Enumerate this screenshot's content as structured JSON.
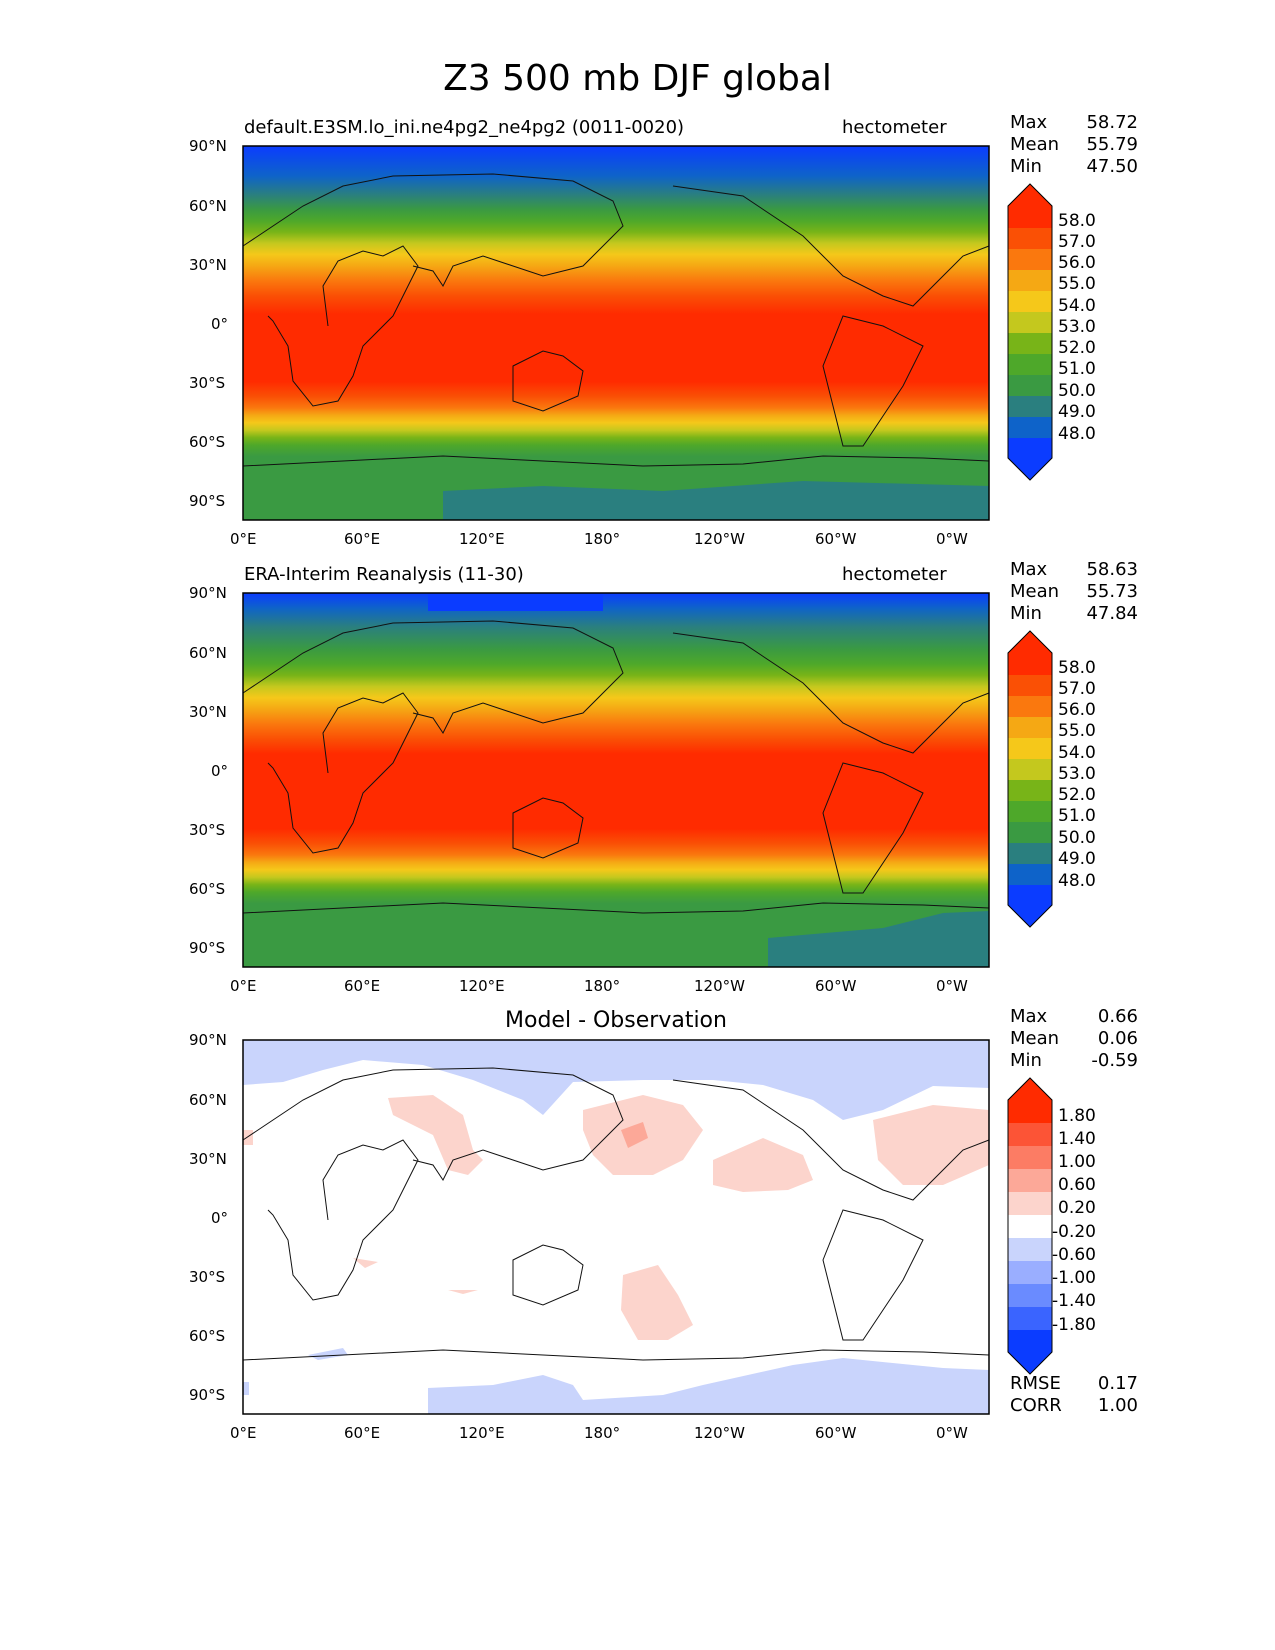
{
  "figure": {
    "title": "Z3 500 mb DJF global"
  },
  "panels": [
    {
      "subtitle_left": "default.E3SM.lo_ini.ne4pg2_ne4pg2 (0011-0020)",
      "subtitle_right": "hectometer",
      "title": "",
      "stats": {
        "max_label": "Max",
        "max": "58.72",
        "mean_label": "Mean",
        "mean": "55.79",
        "min_label": "Min",
        "min": "47.50"
      },
      "colorbar_labels": [
        "58.0",
        "57.0",
        "56.0",
        "55.0",
        "54.0",
        "53.0",
        "52.0",
        "51.0",
        "50.0",
        "49.0",
        "48.0"
      ]
    },
    {
      "subtitle_left": "ERA-Interim Reanalysis (11-30)",
      "subtitle_right": "hectometer",
      "title": "",
      "stats": {
        "max_label": "Max",
        "max": "58.63",
        "mean_label": "Mean",
        "mean": "55.73",
        "min_label": "Min",
        "min": "47.84"
      },
      "colorbar_labels": [
        "58.0",
        "57.0",
        "56.0",
        "55.0",
        "54.0",
        "53.0",
        "52.0",
        "51.0",
        "50.0",
        "49.0",
        "48.0"
      ]
    },
    {
      "subtitle_left": "",
      "subtitle_right": "",
      "title": "Model - Observation",
      "stats": {
        "max_label": "Max",
        "max": "0.66",
        "mean_label": "Mean",
        "mean": "0.06",
        "min_label": "Min",
        "min": "-0.59"
      },
      "colorbar_labels": [
        "1.80",
        "1.40",
        "1.00",
        "0.60",
        "0.20",
        "-0.20",
        "-0.60",
        "-1.00",
        "-1.40",
        "-1.80"
      ],
      "extra": {
        "rmse_label": "RMSE",
        "rmse": "0.17",
        "corr_label": "CORR",
        "corr": "1.00"
      }
    }
  ],
  "axes": {
    "lat_ticks": [
      "90°N",
      "60°N",
      "30°N",
      "0°",
      "30°S",
      "60°S",
      "90°S"
    ],
    "lon_ticks": [
      "0°E",
      "60°E",
      "120°E",
      "180°",
      "120°W",
      "60°W",
      "0°W"
    ]
  },
  "chart_data": [
    {
      "type": "heatmap",
      "variable": "Z3 500 mb",
      "units": "hectometer",
      "levels": [
        48,
        49,
        50,
        51,
        52,
        53,
        54,
        55,
        56,
        57,
        58
      ],
      "colors": [
        "#0b3cff",
        "#0e63c9",
        "#2a7f7f",
        "#3a9a42",
        "#4ea82a",
        "#78b418",
        "#c4c81e",
        "#f5c81a",
        "#f5a814",
        "#fa780e",
        "#fa5005",
        "#ff2b00"
      ],
      "zonal_mean_profile": {
        "lat": [
          90,
          75,
          60,
          45,
          30,
          15,
          0,
          -15,
          -30,
          -45,
          -60,
          -75,
          -90
        ],
        "value": [
          48.5,
          50.5,
          52.5,
          54.8,
          57.0,
          58.2,
          58.5,
          58.4,
          57.5,
          54.0,
          51.0,
          50.0,
          50.0
        ]
      },
      "stats": {
        "max": 58.72,
        "mean": 55.79,
        "min": 47.5
      }
    },
    {
      "type": "heatmap",
      "variable": "Z3 500 mb",
      "units": "hectometer",
      "levels": [
        48,
        49,
        50,
        51,
        52,
        53,
        54,
        55,
        56,
        57,
        58
      ],
      "colors": [
        "#0b3cff",
        "#0e63c9",
        "#2a7f7f",
        "#3a9a42",
        "#4ea82a",
        "#78b418",
        "#c4c81e",
        "#f5c81a",
        "#f5a814",
        "#fa780e",
        "#fa5005",
        "#ff2b00"
      ],
      "zonal_mean_profile": {
        "lat": [
          90,
          75,
          60,
          45,
          30,
          15,
          0,
          -15,
          -30,
          -45,
          -60,
          -75,
          -90
        ],
        "value": [
          48.6,
          50.4,
          52.4,
          54.7,
          57.0,
          58.2,
          58.5,
          58.4,
          57.4,
          53.9,
          51.0,
          50.2,
          50.3
        ]
      },
      "stats": {
        "max": 58.63,
        "mean": 55.73,
        "min": 47.84
      }
    },
    {
      "type": "heatmap",
      "variable": "Model - Observation",
      "levels": [
        -1.8,
        -1.4,
        -1.0,
        -0.6,
        -0.2,
        0.2,
        0.6,
        1.0,
        1.4,
        1.8
      ],
      "colors": [
        "#0b3cff",
        "#3a64ff",
        "#6a8bff",
        "#9aaeff",
        "#c9d4fc",
        "#ffffff",
        "#fcd4cc",
        "#fca898",
        "#fc7c64",
        "#fc5436",
        "#ff2b00"
      ],
      "positive_anomalies": [
        {
          "lon": 55,
          "lat": 35,
          "value": 0.4
        },
        {
          "lon": 200,
          "lat": 35,
          "value": 0.5
        },
        {
          "lon": 255,
          "lat": 25,
          "value": 0.3
        },
        {
          "lon": 335,
          "lat": 25,
          "value": 0.3
        },
        {
          "lon": 215,
          "lat": -45,
          "value": 0.3
        }
      ],
      "negative_anomalies": [
        {
          "lon": 330,
          "lat": 80,
          "value": -0.3
        },
        {
          "lon": 150,
          "lat": -80,
          "value": -0.3
        }
      ],
      "stats": {
        "max": 0.66,
        "mean": 0.06,
        "min": -0.59,
        "rmse": 0.17,
        "corr": 1.0
      }
    }
  ]
}
